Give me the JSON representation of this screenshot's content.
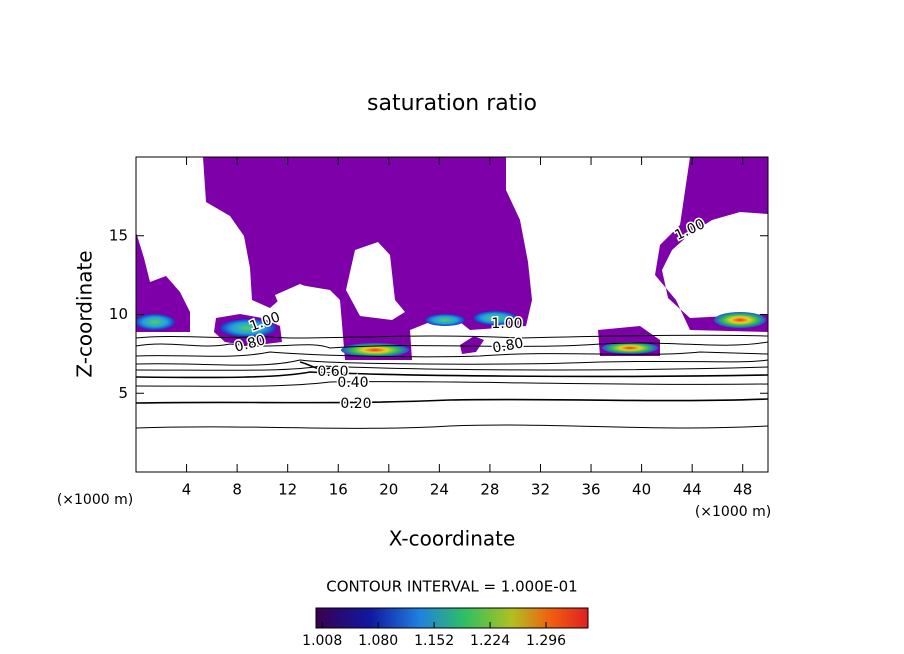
{
  "chart_data": {
    "type": "contour",
    "title": "saturation ratio",
    "x_label": "X-coordinate",
    "y_label": "Z-coordinate",
    "x_unit": "(×1000 m)",
    "y_unit": "(×1000 m)",
    "xlim": [
      0,
      50
    ],
    "ylim": [
      0,
      20
    ],
    "xticks": [
      4,
      8,
      12,
      16,
      20,
      24,
      28,
      32,
      36,
      40,
      44,
      48
    ],
    "yticks": [
      5,
      10,
      15
    ],
    "contour_labels": [
      "1.00",
      "1.00",
      "1.00",
      "0.80",
      "0.80",
      "0.60",
      "0.40",
      "0.20"
    ],
    "contour_interval_text": "CONTOUR INTERVAL = 1.000E-01",
    "clim": [
      1.0,
      1.35
    ],
    "cticks": [
      {
        "value": 1.008,
        "label": "1.008"
      },
      {
        "value": 1.08,
        "label": "1.080"
      },
      {
        "value": 1.152,
        "label": "1.152"
      },
      {
        "value": 1.224,
        "label": "1.224"
      },
      {
        "value": 1.296,
        "label": "1.296"
      }
    ],
    "fill_color": "#7d00a8",
    "grid": false
  }
}
